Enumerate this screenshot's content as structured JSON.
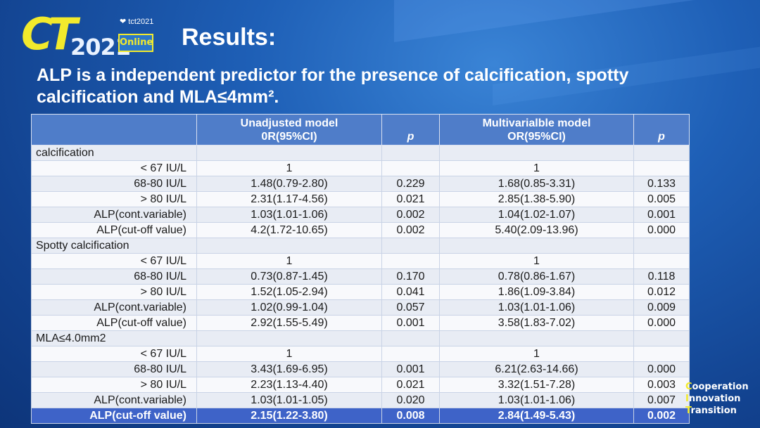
{
  "logo": {
    "c": "C",
    "t": "T",
    "year": "2021",
    "tct": "❤ tct2021",
    "online": "Online"
  },
  "slide": {
    "title": "Results:",
    "subtitle": "ALP is a independent predictor for the presence of calcification, spotty calcification and MLA≤4mm²."
  },
  "table": {
    "headers": {
      "unadj_line1": "Unadjusted model",
      "unadj_line2": "0R(95%CI)",
      "p1": "p",
      "multi_line1": "Multivarialble model",
      "multi_line2": "OR(95%CI)",
      "p2": "p"
    },
    "rows": [
      {
        "name": "calcification",
        "u": "",
        "p1": "",
        "m": "",
        "p2": "",
        "section": true
      },
      {
        "name": "< 67 IU/L",
        "u": "1",
        "p1": "",
        "m": "1",
        "p2": ""
      },
      {
        "name": "68-80 IU/L",
        "u": "1.48(0.79-2.80)",
        "p1": "0.229",
        "m": "1.68(0.85-3.31)",
        "p2": "0.133"
      },
      {
        "name": "> 80 IU/L",
        "u": "2.31(1.17-4.56)",
        "p1": "0.021",
        "m": "2.85(1.38-5.90)",
        "p2": "0.005"
      },
      {
        "name": "ALP(cont.variable)",
        "u": "1.03(1.01-1.06)",
        "p1": "0.002",
        "m": "1.04(1.02-1.07)",
        "p2": "0.001"
      },
      {
        "name": "ALP(cut-off value)",
        "u": "4.2(1.72-10.65)",
        "p1": "0.002",
        "m": "5.40(2.09-13.96)",
        "p2": "0.000"
      },
      {
        "name": "Spotty calcification",
        "u": "",
        "p1": "",
        "m": "",
        "p2": "",
        "section": true
      },
      {
        "name": "< 67 IU/L",
        "u": "1",
        "p1": "",
        "m": "1",
        "p2": ""
      },
      {
        "name": "68-80 IU/L",
        "u": "0.73(0.87-1.45)",
        "p1": "0.170",
        "m": "0.78(0.86-1.67)",
        "p2": "0.118"
      },
      {
        "name": "> 80 IU/L",
        "u": "1.52(1.05-2.94)",
        "p1": "0.041",
        "m": "1.86(1.09-3.84)",
        "p2": "0.012"
      },
      {
        "name": "ALP(cont.variable)",
        "u": "1.02(0.99-1.04)",
        "p1": "0.057",
        "m": "1.03(1.01-1.06)",
        "p2": "0.009"
      },
      {
        "name": "ALP(cut-off value)",
        "u": "2.92(1.55-5.49)",
        "p1": "0.001",
        "m": "3.58(1.83-7.02)",
        "p2": "0.000"
      },
      {
        "name": "MLA≤4.0mm2",
        "u": "",
        "p1": "",
        "m": "",
        "p2": "",
        "section": true
      },
      {
        "name": "< 67 IU/L",
        "u": "1",
        "p1": "",
        "m": "1",
        "p2": ""
      },
      {
        "name": "68-80 IU/L",
        "u": "3.43(1.69-6.95)",
        "p1": "0.001",
        "m": "6.21(2.63-14.66)",
        "p2": "0.000"
      },
      {
        "name": "> 80 IU/L",
        "u": "2.23(1.13-4.40)",
        "p1": "0.021",
        "m": "3.32(1.51-7.28)",
        "p2": "0.003"
      },
      {
        "name": "ALP(cont.variable)",
        "u": "1.03(1.01-1.05)",
        "p1": "0.020",
        "m": "1.03(1.01-1.06)",
        "p2": "0.007"
      },
      {
        "name": "ALP(cut-off value)",
        "u": "2.15(1.22-3.80)",
        "p1": "0.008",
        "m": "2.84(1.49-5.43)",
        "p2": "0.002",
        "highlight": true
      }
    ]
  },
  "footer": {
    "line1_cap": "C",
    "line1_rest": "ooperation",
    "line2_cap": "I",
    "line2_rest": "nnovation",
    "line3_cap": "T",
    "line3_rest": "ransition"
  },
  "colors": {
    "background": "#1e5fb6",
    "header_fill": "#4f7dc9",
    "highlight_row": "#3e63c8",
    "logo_yellow": "#f2ea2c"
  }
}
